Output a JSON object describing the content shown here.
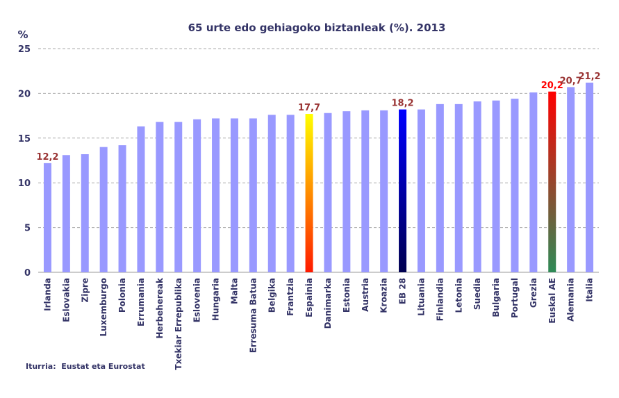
{
  "chart_data": {
    "type": "bar",
    "title": "65 urte edo gehiagoko biztanleak (%). 2013",
    "ylabel": "%",
    "xlabel": "",
    "ylim": [
      0,
      25
    ],
    "yticks": [
      "0",
      "5",
      "10",
      "15",
      "20",
      "25"
    ],
    "grid": true,
    "source": "Iturria:  Eustat eta Eurostat",
    "categories": [
      "Irlanda",
      "Eslovakia",
      "Zipre",
      "Luxemburgo",
      "Polonia",
      "Errumania",
      "Herbehereak",
      "Txekiar Errepublika",
      "Eslovenia",
      "Hungaria",
      "Malta",
      "Erresuma Batua",
      "Belgika",
      "Frantzia",
      "Espainia",
      "Danimarka",
      "Estonia",
      "Austria",
      "Kroazia",
      "EB 28",
      "Lituania",
      "Finlandia",
      "Letonia",
      "Suedia",
      "Bulgaria",
      "Portugal",
      "Grezia",
      "Euskal AE",
      "Alemania",
      "Italia"
    ],
    "values": [
      12.2,
      13.1,
      13.2,
      14.0,
      14.2,
      16.3,
      16.8,
      16.8,
      17.1,
      17.2,
      17.2,
      17.2,
      17.6,
      17.6,
      17.7,
      17.8,
      18.0,
      18.1,
      18.1,
      18.2,
      18.2,
      18.8,
      18.8,
      19.1,
      19.2,
      19.4,
      20.1,
      20.2,
      20.7,
      21.2
    ],
    "data_labels": {
      "Irlanda": "12,2",
      "Espainia": "17,7",
      "EB 28": "18,2",
      "Euskal AE": "20,2",
      "Alemania": "20,7",
      "Italia": "21,2"
    },
    "colors": {
      "default": "#9999ff",
      "highlight": {
        "Espainia": [
          "#ffff00",
          "#ff1a00"
        ],
        "EB 28": [
          "#0000ff",
          "#000050"
        ],
        "Euskal AE": [
          "#ff0000",
          "#2e8b57"
        ]
      },
      "label": "#993333",
      "label_euskal": "#ff0000",
      "title": "#333366"
    }
  }
}
